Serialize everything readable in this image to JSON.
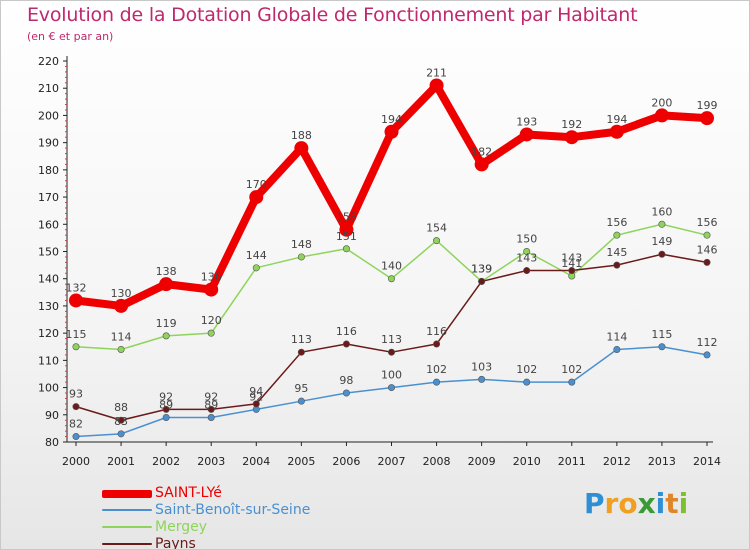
{
  "title": "Evolution de la Dotation Globale de Fonctionnement par Habitant",
  "subtitle": "(en € et par an)",
  "brand": {
    "letters": [
      "P",
      "r",
      "o",
      "x",
      "i",
      "t",
      "i"
    ],
    "colors": [
      "#2e8fd4",
      "#f0a020",
      "#f0a020",
      "#3b9a38",
      "#2e8fd4",
      "#e0862a",
      "#7cc030"
    ]
  },
  "colors": {
    "title": "#c0286e",
    "saint_lye": "#ee0000",
    "saint_benoit": "#4a90d0",
    "mergey": "#8ed45a",
    "payns": "#6b1a1a"
  },
  "chart_data": {
    "type": "line",
    "title": "Evolution de la Dotation Globale de Fonctionnement par Habitant",
    "subtitle": "(en € et par an)",
    "xlabel": "",
    "ylabel": "",
    "ylim": [
      80,
      220
    ],
    "yticks": [
      80,
      90,
      100,
      110,
      120,
      130,
      140,
      150,
      160,
      170,
      180,
      190,
      200,
      210,
      220
    ],
    "x": [
      "2000",
      "2001",
      "2002",
      "2003",
      "2004",
      "2005",
      "2006",
      "2007",
      "2008",
      "2009",
      "2010",
      "2011",
      "2012",
      "2013",
      "2014"
    ],
    "grid": false,
    "legend_position": "bottom-left",
    "series": [
      {
        "name": "SAINT-LYé",
        "key": "saint_lye",
        "values": [
          132,
          130,
          138,
          136,
          170,
          188,
          158,
          194,
          211,
          182,
          193,
          192,
          194,
          200,
          199
        ],
        "labels": [
          "132",
          "130",
          "138",
          "136",
          "170",
          "188",
          "158",
          "194",
          "211",
          "182",
          "193",
          "192",
          "194",
          "200",
          "199"
        ]
      },
      {
        "name": "Saint-Benoît-sur-Seine",
        "key": "saint_benoit",
        "values": [
          82,
          83,
          89,
          89,
          92,
          95,
          98,
          100,
          102,
          103,
          102,
          102,
          114,
          115,
          112
        ],
        "labels": [
          "82",
          "83",
          "89",
          "89",
          "92",
          "95",
          "98",
          "100",
          "102",
          "103",
          "102",
          "102",
          "114",
          "115",
          "112"
        ]
      },
      {
        "name": "Mergey",
        "key": "mergey",
        "values": [
          115,
          114,
          119,
          120,
          144,
          148,
          151,
          140,
          154,
          139,
          150,
          141,
          156,
          160,
          156
        ],
        "labels": [
          "115",
          "114",
          "119",
          "120",
          "144",
          "148",
          "151",
          "140",
          "154",
          "139",
          "150",
          "141",
          "156",
          "160",
          "156"
        ]
      },
      {
        "name": "Payns",
        "key": "payns",
        "values": [
          93,
          88,
          92,
          92,
          94,
          113,
          116,
          113,
          116,
          139,
          143,
          143,
          145,
          149,
          146
        ],
        "labels": [
          "93",
          "88",
          "92",
          "92",
          "94",
          "113",
          "116",
          "113",
          "116",
          "139",
          "143",
          "143",
          "145",
          "149",
          "146"
        ]
      }
    ]
  }
}
